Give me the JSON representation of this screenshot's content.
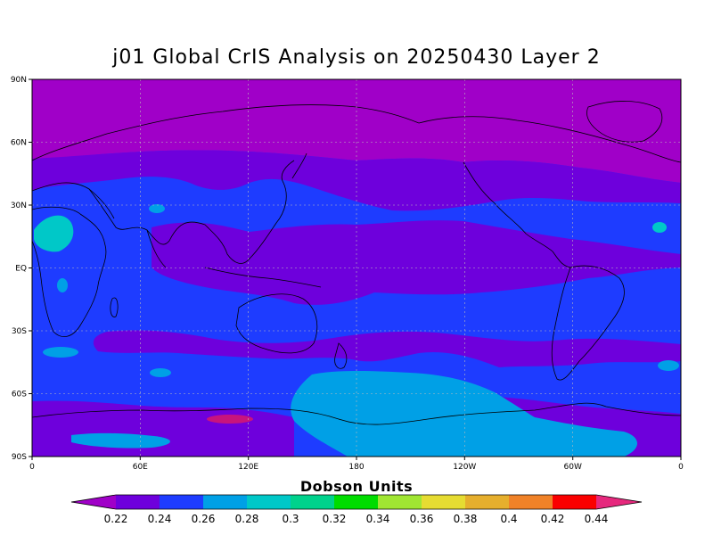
{
  "title": "j01 Global CrIS Analysis on 20250430 Layer 2",
  "map": {
    "x_ticks": [
      "0",
      "60E",
      "120E",
      "180",
      "120W",
      "60W",
      "0"
    ],
    "y_ticks": [
      "90N",
      "60N",
      "30N",
      "EQ",
      "30S",
      "60S",
      "90S"
    ]
  },
  "colorbar": {
    "title": "Dobson Units",
    "labels": [
      "0.22",
      "0.24",
      "0.26",
      "0.28",
      "0.3",
      "0.32",
      "0.34",
      "0.36",
      "0.38",
      "0.4",
      "0.42",
      "0.44"
    ],
    "colors": [
      "#a000c8",
      "#6e00dc",
      "#1e3cff",
      "#00a0e6",
      "#00c8c8",
      "#00d28c",
      "#00dc00",
      "#a0e632",
      "#e6dc32",
      "#e6af2d",
      "#f08228",
      "#fa0000",
      "#e6287d"
    ]
  },
  "field_colors": {
    "polar_purple": "#a000c8",
    "violet": "#6e00dc",
    "blue": "#1e3cff",
    "light_blue": "#00a0e6",
    "teal": "#00c8c8",
    "magenta": "#c8147d"
  }
}
